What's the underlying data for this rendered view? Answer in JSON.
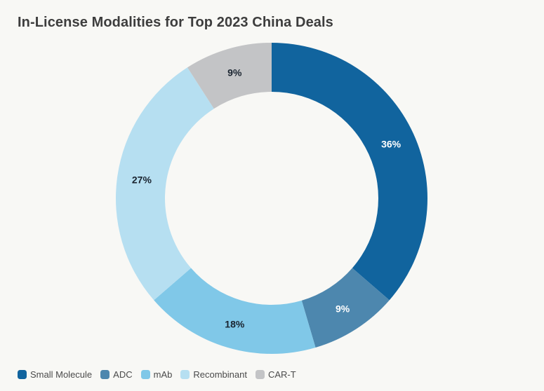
{
  "title": "In-License Modalities for Top 2023 China Deals",
  "colors": {
    "background": "#f8f8f5",
    "title_text": "#3d3d3d",
    "legend_text": "#4a4a4a"
  },
  "chart_data": {
    "type": "pie",
    "subtype": "donut",
    "title": "In-License Modalities for Top 2023 China Deals",
    "categories": [
      "Small Molecule",
      "ADC",
      "mAb",
      "Recombinant",
      "CAR-T"
    ],
    "values": [
      36,
      9,
      18,
      27,
      9
    ],
    "labels": [
      "36%",
      "9%",
      "18%",
      "27%",
      "9%"
    ],
    "colors": [
      "#11649e",
      "#4d87ae",
      "#80c8e8",
      "#b6dff1",
      "#c3c4c6"
    ],
    "label_colors": [
      "#ffffff",
      "#ffffff",
      "#1a2430",
      "#1a2430",
      "#1a2430"
    ],
    "start_angle_deg": 0,
    "direction": "clockwise",
    "inner_radius_ratio": 0.68,
    "legend_position": "bottom-left",
    "grid": false
  }
}
